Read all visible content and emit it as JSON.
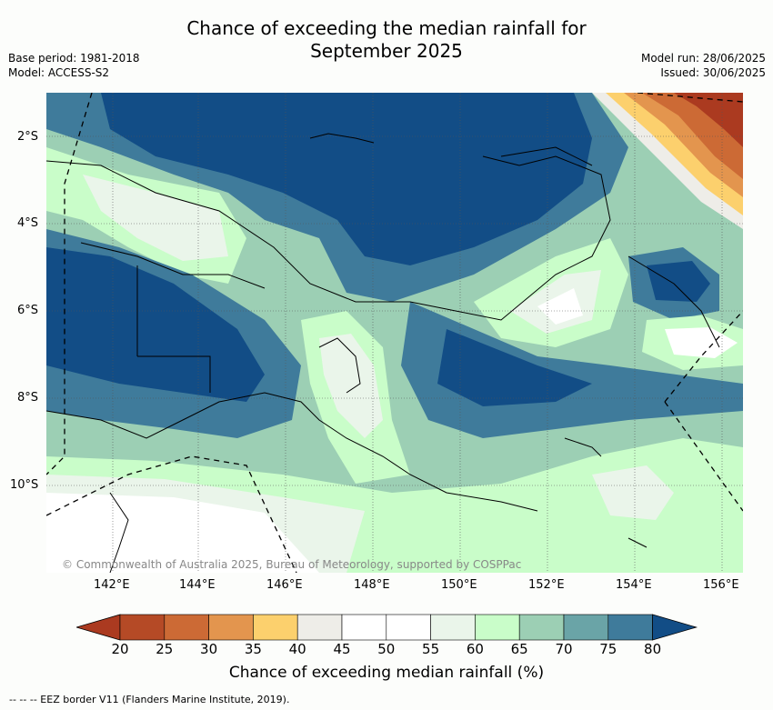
{
  "header": {
    "title_line1": "Chance of exceeding the median rainfall for",
    "title_line2": "September 2025",
    "base_period": "Base period: 1981-2018",
    "model": "Model: ACCESS-S2",
    "model_run": "Model run: 28/06/2025",
    "issued": "Issued: 30/06/2025"
  },
  "map": {
    "lat_labels": [
      "2°S",
      "4°S",
      "6°S",
      "8°S",
      "10°S"
    ],
    "lon_labels": [
      "142°E",
      "144°E",
      "146°E",
      "148°E",
      "150°E",
      "152°E",
      "154°E",
      "156°E"
    ],
    "copyright": "© Commonwealth of Australia 2025, Bureau of Meteorology, supported by COSPPac"
  },
  "colorbar": {
    "title": "Chance of exceeding median rainfall (%)",
    "labels": [
      "20",
      "25",
      "30",
      "35",
      "40",
      "45",
      "50",
      "55",
      "60",
      "65",
      "70",
      "75",
      "80"
    ],
    "colors": [
      "#ab3a20",
      "#b54a26",
      "#cc6a35",
      "#e3954e",
      "#fcd06d",
      "#eeede8",
      "#ffffff",
      "#ffffff",
      "#eaf5ea",
      "#c9fdc9",
      "#9ccfb4",
      "#6aa4a7",
      "#3f7b9b",
      "#124d86"
    ]
  },
  "footer": {
    "eez": "--  --  -- EEZ border V11 (Flanders Marine Institute, 2019)."
  }
}
